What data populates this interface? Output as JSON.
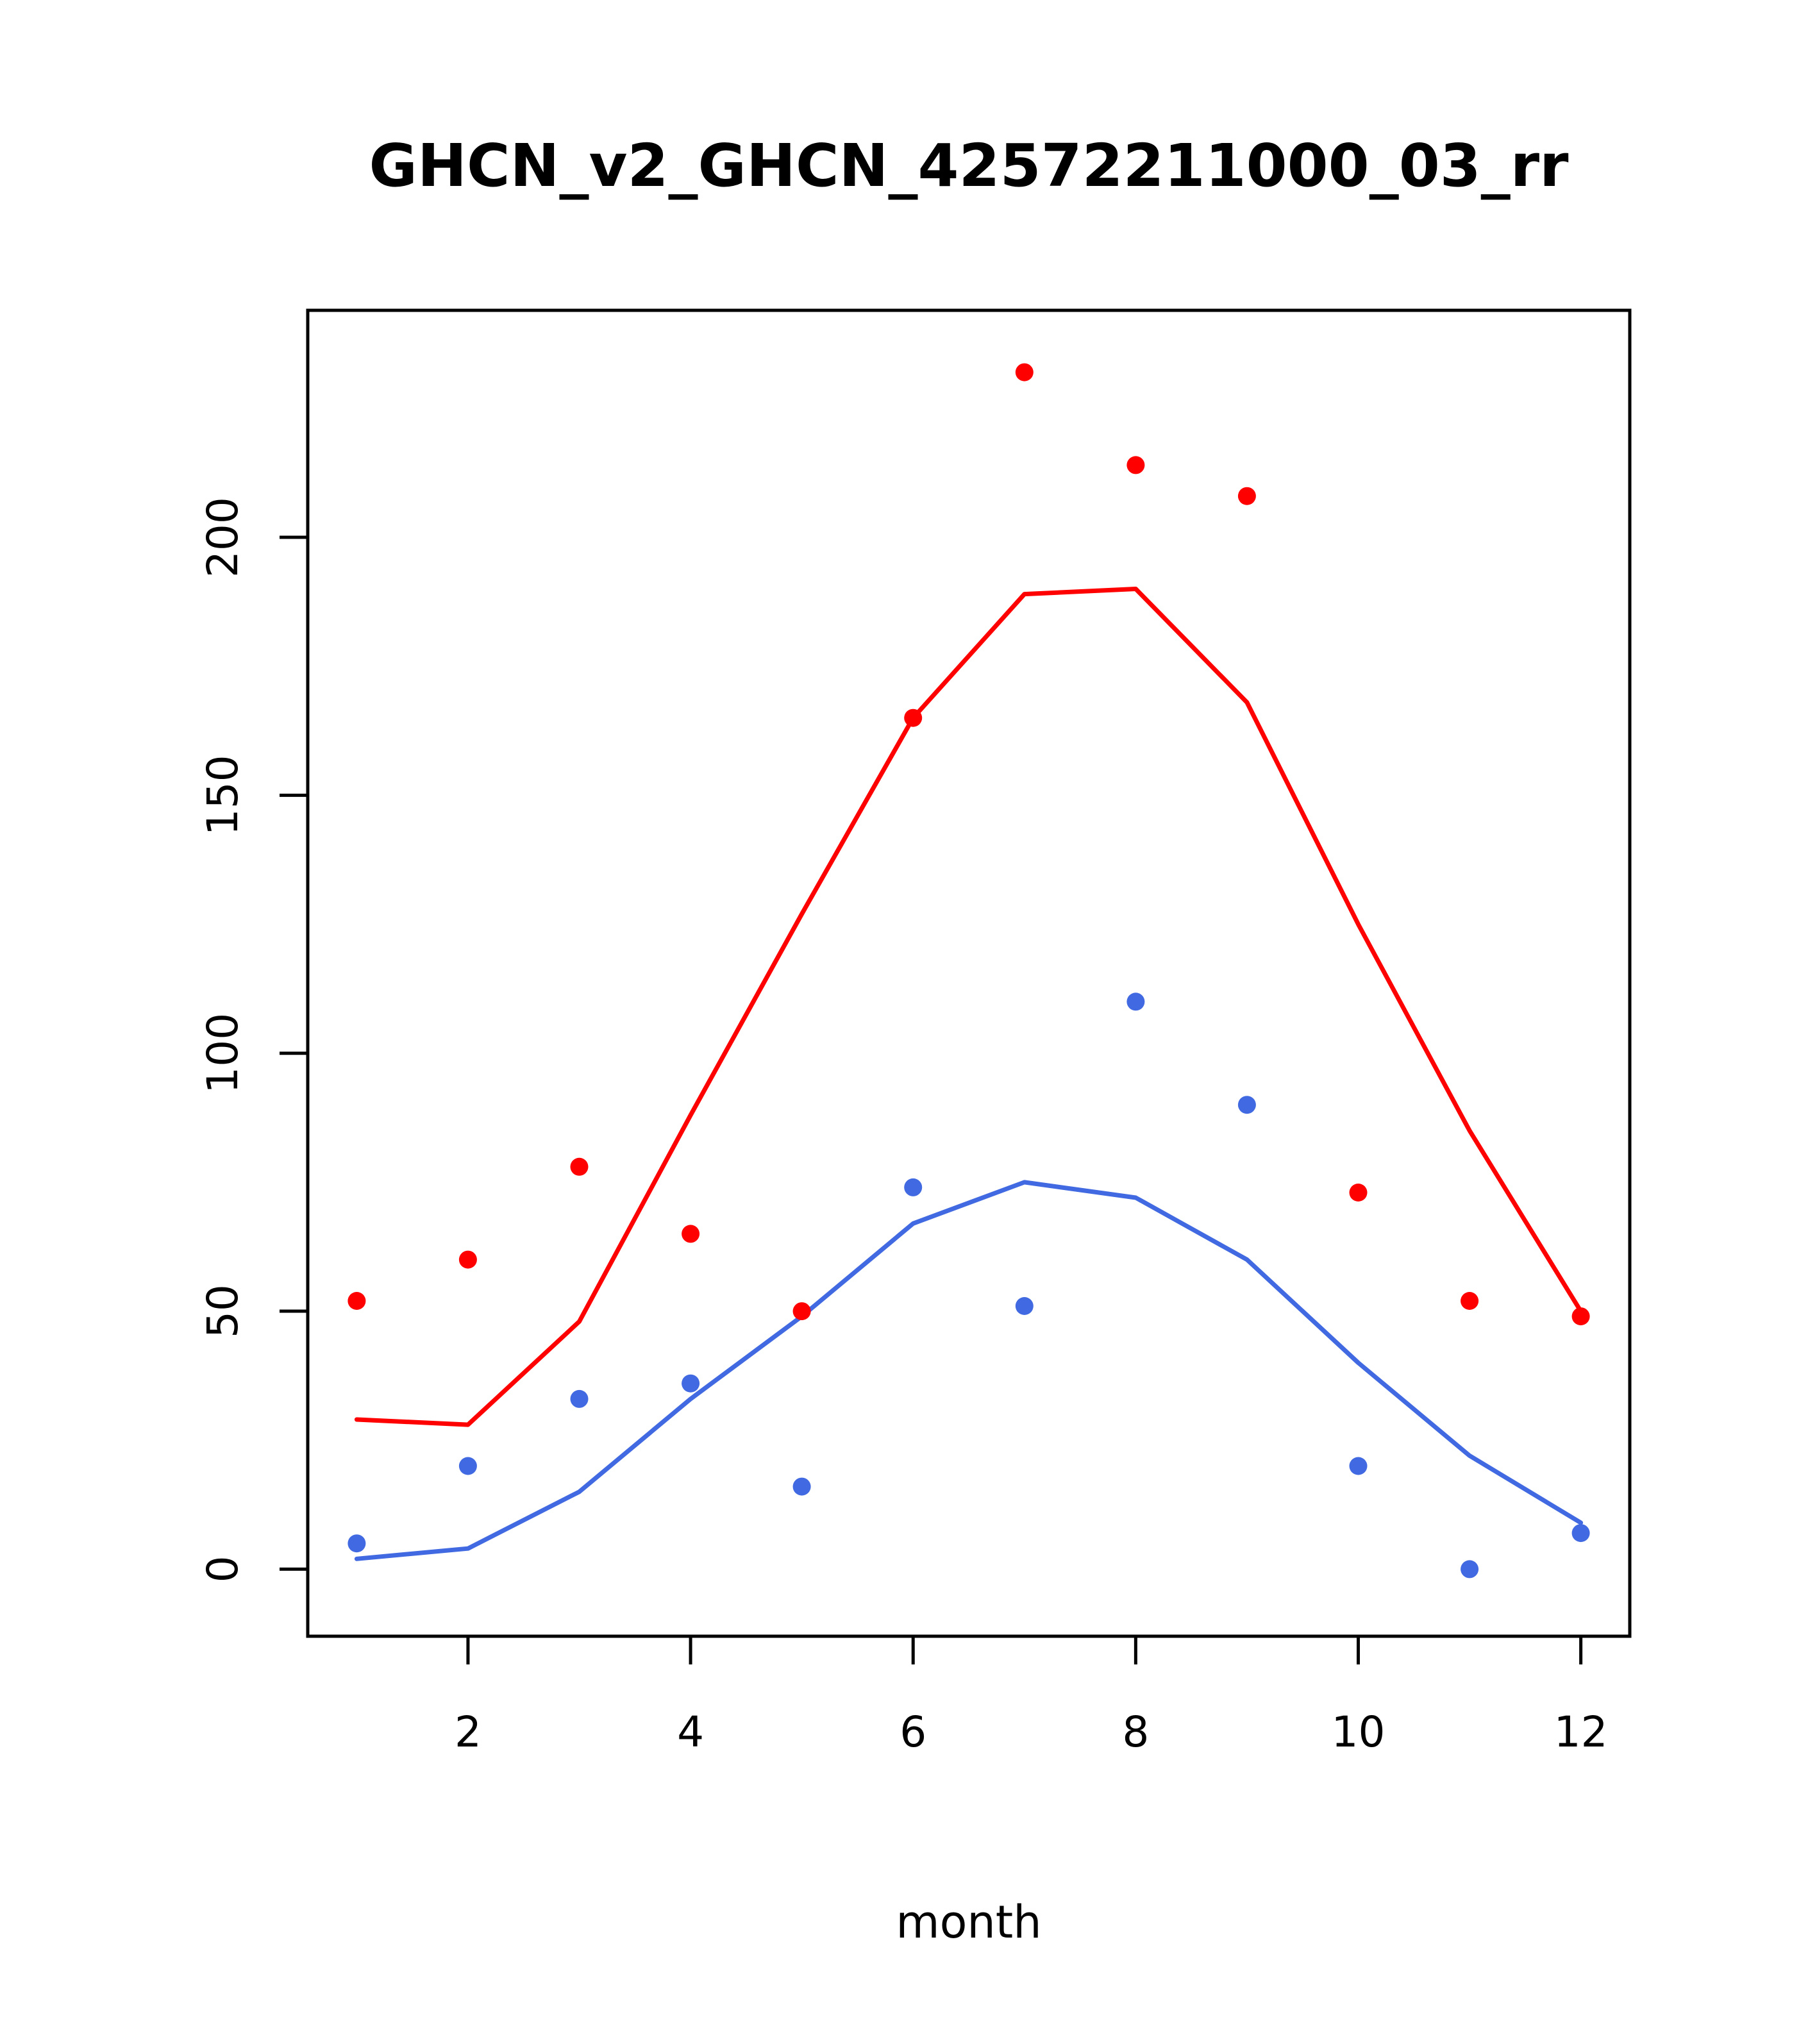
{
  "chart_data": {
    "type": "line",
    "title": "GHCN_v2_GHCN_42572211000_03_rr",
    "xlabel": "month",
    "ylabel": "",
    "x": [
      1,
      2,
      3,
      4,
      5,
      6,
      7,
      8,
      9,
      10,
      11,
      12
    ],
    "x_ticks": [
      2,
      4,
      6,
      8,
      10,
      12
    ],
    "y_ticks": [
      0,
      50,
      100,
      150,
      200
    ],
    "xlim": [
      0.56,
      12.44
    ],
    "ylim": [
      -13,
      244
    ],
    "grid": false,
    "legend": "none",
    "colors": {
      "red": "#ff0000",
      "blue": "#4169e1",
      "axis": "#000000"
    },
    "series": [
      {
        "name": "red-line",
        "type": "line",
        "color": "#ff0000",
        "values": [
          29,
          28,
          48,
          88,
          127,
          165,
          189,
          190,
          168,
          125,
          85,
          50
        ]
      },
      {
        "name": "blue-line",
        "type": "line",
        "color": "#4169e1",
        "values": [
          2,
          4,
          15,
          33,
          49,
          67,
          75,
          72,
          60,
          40,
          22,
          9
        ]
      },
      {
        "name": "red-points",
        "type": "scatter",
        "color": "#ff0000",
        "values": [
          52,
          60,
          78,
          65,
          50,
          165,
          232,
          214,
          208,
          73,
          52,
          49
        ]
      },
      {
        "name": "blue-points",
        "type": "scatter",
        "color": "#4169e1",
        "values": [
          5,
          20,
          33,
          36,
          16,
          74,
          51,
          110,
          90,
          20,
          0,
          7
        ]
      }
    ]
  }
}
